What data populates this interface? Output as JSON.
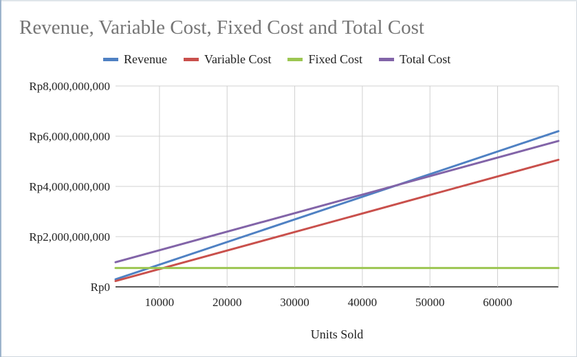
{
  "chart_data": {
    "type": "line",
    "title": "Revenue, Variable Cost, Fixed Cost and Total Cost",
    "xlabel": "Units Sold",
    "ylabel": "",
    "x_ticks": [
      "10000",
      "20000",
      "30000",
      "40000",
      "50000",
      "60000"
    ],
    "y_ticks": [
      "Rp0",
      "Rp2,000,000,000",
      "Rp4,000,000,000",
      "Rp6,000,000,000",
      "Rp8,000,000,000"
    ],
    "xlim": [
      3500,
      69000
    ],
    "ylim": [
      0,
      8000000000
    ],
    "grid": true,
    "legend_position": "top",
    "series": [
      {
        "name": "Revenue",
        "color": "#4f81c3",
        "x": [
          3500,
          69000
        ],
        "y": [
          300000000,
          6200000000
        ]
      },
      {
        "name": "Variable Cost",
        "color": "#c9504c",
        "x": [
          3500,
          69000
        ],
        "y": [
          230000000,
          5060000000
        ]
      },
      {
        "name": "Fixed Cost",
        "color": "#9cc651",
        "x": [
          3500,
          69000
        ],
        "y": [
          750000000,
          750000000
        ]
      },
      {
        "name": "Total Cost",
        "color": "#8264a8",
        "x": [
          3500,
          69000
        ],
        "y": [
          980000000,
          5810000000
        ]
      }
    ]
  }
}
